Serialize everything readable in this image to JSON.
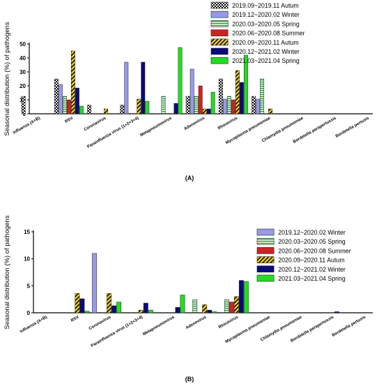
{
  "figure": {
    "panel_a_label": "(A)",
    "panel_b_label": "(B)"
  },
  "chart_data": [
    {
      "type": "bar",
      "panel": "A",
      "ylabel": "Seasonal distribution (%) of pathogens",
      "xlabel": "",
      "ylim": [
        0,
        50
      ],
      "yticks": [
        0,
        10,
        20,
        30,
        40,
        50
      ],
      "legend_position": "top-right",
      "grid": false,
      "categories": [
        "Influenza (A+B)",
        "RSV",
        "Coronavirus",
        "Parainfluenza virus (1+2+3+4)",
        "Metapneumovirus",
        "Adenovirus",
        "Rhinovirus",
        "Mycoplasma pneumoniae",
        "Chlamydia pneumoniae",
        "Bordetella parapertussis",
        "Bordetella pertusis"
      ],
      "series": [
        {
          "name": "2019.09~2019.11 Autum",
          "color": "#e8e8e8",
          "pattern": "checker",
          "values": [
            12.5,
            25,
            6.25,
            6.25,
            0,
            12.5,
            25,
            12.5,
            0,
            0,
            0
          ]
        },
        {
          "name": "2019.12~2020.02 Winter",
          "color": "#9999e6",
          "pattern": "solid",
          "values": [
            0,
            21,
            0,
            37,
            0,
            32,
            10.5,
            10.5,
            0,
            0,
            0
          ]
        },
        {
          "name": "2020.03~2020.05 Spring",
          "color": "#c9eec9",
          "pattern": "hlines",
          "values": [
            0,
            12.5,
            0,
            0,
            12.5,
            12.5,
            12.5,
            25,
            0,
            0,
            0
          ]
        },
        {
          "name": "2020.06~2020.08 Summer",
          "color": "#cc2222",
          "pattern": "solid",
          "values": [
            0,
            10,
            0,
            0,
            0,
            20,
            10,
            0,
            0,
            0,
            0
          ]
        },
        {
          "name": "2020.09~2020.11 Autum",
          "color": "#e8c21a",
          "pattern": "diag",
          "values": [
            0,
            45,
            3.5,
            10.5,
            0,
            3.5,
            31,
            3.5,
            0,
            0,
            0
          ]
        },
        {
          "name": "2020.12~2021.02 Winter",
          "color": "#0a0a7a",
          "pattern": "solid",
          "values": [
            0,
            18.5,
            0,
            37,
            7.5,
            3.5,
            22.5,
            0,
            0,
            0,
            0
          ]
        },
        {
          "name": "2021.03~2021.04 Spring",
          "color": "#22dd22",
          "pattern": "solid",
          "values": [
            0,
            5.5,
            0,
            9,
            47.5,
            15.5,
            42,
            0,
            0,
            0,
            0
          ]
        }
      ]
    },
    {
      "type": "bar",
      "panel": "B",
      "ylabel": "Seasonal distribution (%) of pathogens",
      "xlabel": "",
      "ylim": [
        0,
        15
      ],
      "yticks": [
        0,
        5,
        10,
        15
      ],
      "legend_position": "top-right",
      "grid": false,
      "categories": [
        "Influenza (A+B)",
        "RSV",
        "Coronavirus",
        "Parainfluenza virus (1+2+3+4)",
        "Metapneumovirus",
        "Adenovirus",
        "Rhinovirus",
        "Mycoplasma pneumoniae",
        "Chlamydia pneumoniae",
        "Bordetella parapertussis",
        "Bordetella pertusis"
      ],
      "series": [
        {
          "name": "2019.12~2020.02 Winter",
          "color": "#9999e6",
          "pattern": "solid",
          "values": [
            0,
            0,
            11,
            0,
            0,
            0,
            0,
            0,
            0,
            0,
            0
          ]
        },
        {
          "name": "2020.03~2020.05 Spring",
          "color": "#c9eec9",
          "pattern": "hlines",
          "values": [
            0,
            0,
            0,
            0,
            0,
            2.4,
            2.4,
            0,
            0,
            0,
            0
          ]
        },
        {
          "name": "2020.06~2020.08 Summer",
          "color": "#cc2222",
          "pattern": "solid",
          "values": [
            0,
            0,
            0,
            0,
            0,
            0,
            2.0,
            0,
            0,
            0,
            0
          ]
        },
        {
          "name": "2020.09~2020.11 Autum",
          "color": "#e8c21a",
          "pattern": "diag",
          "values": [
            0,
            3.6,
            3.6,
            0.5,
            0,
            1.5,
            3.0,
            0,
            0,
            0,
            0
          ]
        },
        {
          "name": "2020.12~2021.02 Winter",
          "color": "#0a0a7a",
          "pattern": "solid",
          "values": [
            0,
            2.6,
            1.3,
            1.8,
            1.0,
            0.5,
            6.0,
            0,
            0,
            0.2,
            0
          ]
        },
        {
          "name": "2021.03~2021.04 Spring",
          "color": "#22dd22",
          "pattern": "solid",
          "values": [
            0,
            0.3,
            2.0,
            0.5,
            3.3,
            0.2,
            5.8,
            0,
            0,
            0,
            0
          ]
        }
      ]
    }
  ]
}
